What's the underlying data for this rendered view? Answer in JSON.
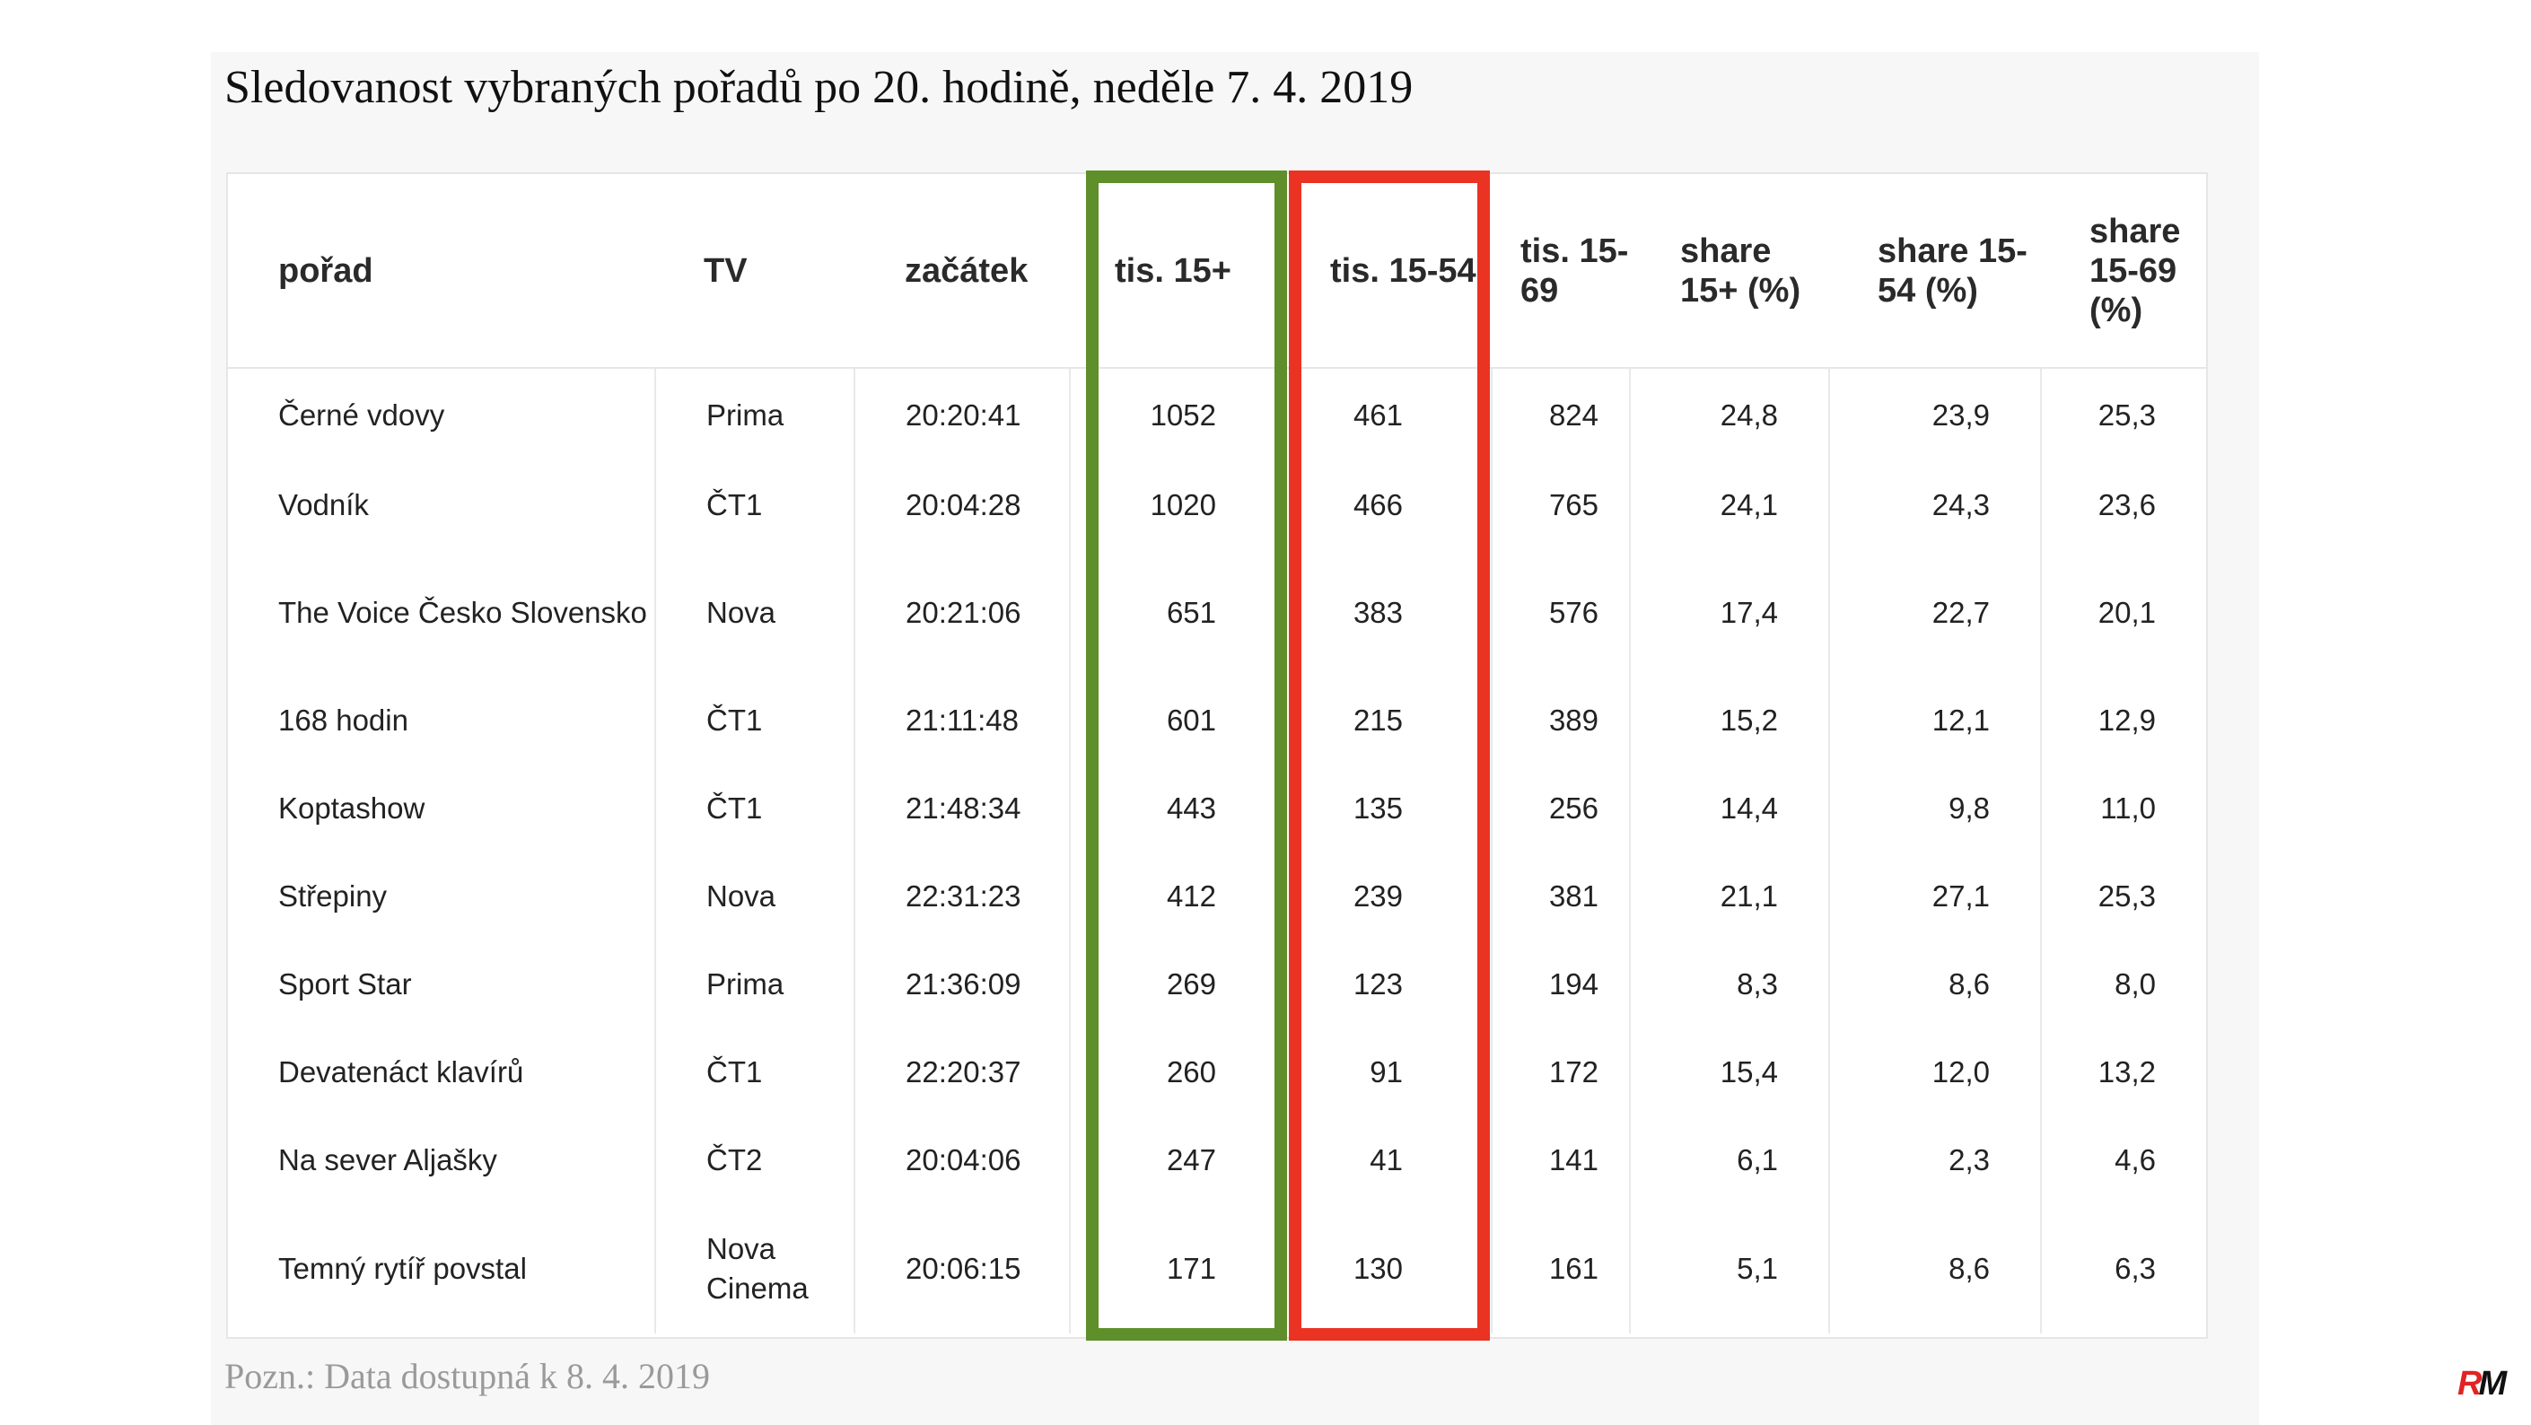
{
  "title": "Sledovanost vybraných pořadů po 20. hodině, neděle 7. 4. 2019",
  "headers": {
    "show": "pořad",
    "tv": "TV",
    "start": "začátek",
    "tis15": "tis. 15+",
    "tis1554": "tis. 15-54",
    "tis1569": "tis. 15-69",
    "share15": "share 15+ (%)",
    "share1554": "share 15-54 (%)",
    "share1569": "share 15-69 (%)"
  },
  "rows": [
    {
      "show": "Černé vdovy",
      "tv": "Prima",
      "start": "20:20:41",
      "tis15": "1052",
      "tis1554": "461",
      "tis1569": "824",
      "share15": "24,8",
      "share1554": "23,9",
      "share1569": "25,3"
    },
    {
      "show": "Vodník",
      "tv": "ČT1",
      "start": "20:04:28",
      "tis15": "1020",
      "tis1554": "466",
      "tis1569": "765",
      "share15": "24,1",
      "share1554": "24,3",
      "share1569": "23,6"
    },
    {
      "show": "The Voice Česko Slovensko",
      "tv": "Nova",
      "start": "20:21:06",
      "tis15": "651",
      "tis1554": "383",
      "tis1569": "576",
      "share15": "17,4",
      "share1554": "22,7",
      "share1569": "20,1"
    },
    {
      "show": "168 hodin",
      "tv": "ČT1",
      "start": "21:11:48",
      "tis15": "601",
      "tis1554": "215",
      "tis1569": "389",
      "share15": "15,2",
      "share1554": "12,1",
      "share1569": "12,9"
    },
    {
      "show": "Koptashow",
      "tv": "ČT1",
      "start": "21:48:34",
      "tis15": "443",
      "tis1554": "135",
      "tis1569": "256",
      "share15": "14,4",
      "share1554": "9,8",
      "share1569": "11,0"
    },
    {
      "show": "Střepiny",
      "tv": "Nova",
      "start": "22:31:23",
      "tis15": "412",
      "tis1554": "239",
      "tis1569": "381",
      "share15": "21,1",
      "share1554": "27,1",
      "share1569": "25,3"
    },
    {
      "show": "Sport Star",
      "tv": "Prima",
      "start": "21:36:09",
      "tis15": "269",
      "tis1554": "123",
      "tis1569": "194",
      "share15": "8,3",
      "share1554": "8,6",
      "share1569": "8,0"
    },
    {
      "show": "Devatenáct klavírů",
      "tv": "ČT1",
      "start": "22:20:37",
      "tis15": "260",
      "tis1554": "91",
      "tis1569": "172",
      "share15": "15,4",
      "share1554": "12,0",
      "share1569": "13,2"
    },
    {
      "show": "Na sever Aljašky",
      "tv": "ČT2",
      "start": "20:04:06",
      "tis15": "247",
      "tis1554": "41",
      "tis1569": "141",
      "share15": "6,1",
      "share1554": "2,3",
      "share1569": "4,6"
    },
    {
      "show": "Temný rytíř povstal",
      "tv": "Nova Cinema",
      "start": "20:06:15",
      "tis15": "171",
      "tis1554": "130",
      "tis1569": "161",
      "share15": "5,1",
      "share1554": "8,6",
      "share1569": "6,3"
    }
  ],
  "note": "Pozn.: Data dostupná k 8. 4. 2019",
  "logo": "RM",
  "colors": {
    "highlight_green": "#5e8f2a",
    "highlight_red": "#ea3323",
    "logo_red": "#e02424"
  }
}
